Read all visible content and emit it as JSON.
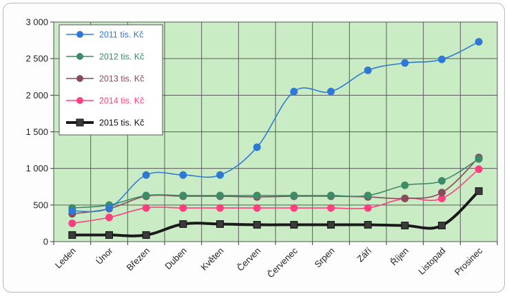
{
  "chart_data": {
    "type": "line",
    "categories": [
      "Leden",
      "Únor",
      "Březen",
      "Duben",
      "Květen",
      "Červen",
      "Červenec",
      "Srpen",
      "Září",
      "Říjen",
      "Listopad",
      "Prosinec"
    ],
    "ylim": [
      0,
      3000
    ],
    "yticks": [
      0,
      500,
      1000,
      1500,
      2000,
      2500,
      3000
    ],
    "ytick_labels": [
      "0",
      "500",
      "1 000",
      "1 500",
      "2 000",
      "2 500",
      "3 000"
    ],
    "grid": true,
    "legend_position": "top-left",
    "plot_background": "#c9ecc4",
    "series": [
      {
        "name": "2011 tis. Kč",
        "color": "#2f79d6",
        "marker": "circle",
        "values": [
          420,
          460,
          910,
          910,
          910,
          1290,
          2050,
          2050,
          2340,
          2440,
          2490,
          2730
        ]
      },
      {
        "name": "2012 tis. Kč",
        "color": "#3f8a67",
        "marker": "circle",
        "values": [
          460,
          500,
          630,
          630,
          630,
          630,
          630,
          630,
          630,
          770,
          830,
          1130
        ]
      },
      {
        "name": "2013 tis. Kč",
        "color": "#8a4a5e",
        "marker": "circle",
        "values": [
          380,
          450,
          620,
          620,
          620,
          610,
          620,
          620,
          610,
          590,
          670,
          1150
        ]
      },
      {
        "name": "2014 tis. Kč",
        "color": "#ff3f7f",
        "marker": "circle",
        "values": [
          250,
          330,
          460,
          460,
          460,
          460,
          460,
          460,
          460,
          590,
          590,
          990
        ]
      },
      {
        "name": "2015 tis. Kč",
        "color": "#1a1a1a",
        "marker": "square",
        "values": [
          90,
          90,
          90,
          240,
          240,
          230,
          230,
          230,
          230,
          220,
          220,
          690
        ]
      }
    ]
  }
}
